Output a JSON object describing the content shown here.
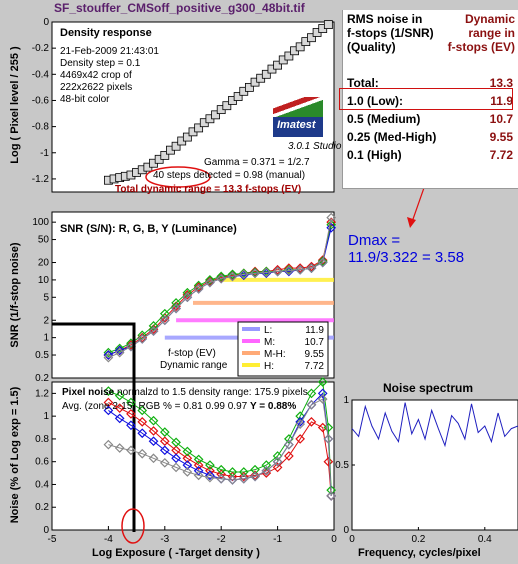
{
  "window_title": "SF_stouffer_CMSoff_positive_g300_48bit.tif",
  "density_panel": {
    "title": "Density response",
    "info_lines": [
      "21-Feb-2009 21:43:01",
      "Density step = 0.1",
      "4469x42 crop of",
      "222x2622 pixels",
      "48-bit color"
    ],
    "logo_text": "Imatest",
    "version_text": "3.0.1  Studio",
    "gamma_text": "Gamma = 0.371 = 1/2.7",
    "steps_text": "40 steps detected = 0.98 (manual)",
    "dynamic_range_text": "Total dynamic range = 13.3 f-stops (EV)",
    "ylabel": "Log ( Pixel level / 255 )",
    "yticks": [
      "0",
      "-0.2",
      "-0.4",
      "-0.6",
      "-0.8",
      "-1",
      "-1.2"
    ]
  },
  "snr_panel": {
    "title": "SNR (S/N): R, G, B, Y (Luminance)",
    "ylabel": "SNR (1/f-stop noise)",
    "yticks": [
      "100",
      "50",
      "20",
      "10",
      "5",
      "2",
      "1",
      "0.5",
      "0.2"
    ],
    "legend": [
      {
        "label": "L:",
        "value": "11.9",
        "color": "#9999ff"
      },
      {
        "label": "M:",
        "value": "10.7",
        "color": "#ff66ff"
      },
      {
        "label": "M-H:",
        "value": "9.55",
        "color": "#ffaa77"
      },
      {
        "label": "H:",
        "value": "7.72",
        "color": "#ffee33"
      }
    ],
    "annotation_line1": "f-stop (EV)",
    "annotation_line2": "Dynamic range"
  },
  "noise_panel": {
    "title": "Pixel noise",
    "subtitle_tail": "normalzd to 1.5 density range: 175.9 pixels",
    "line2": "Avg. (zone 2-15) RGB % = 0.81  0.99  0.97",
    "line2_y": "Y = 0.88%",
    "ylabel": "Noise (% of Log exp = 1.5)",
    "yticks": [
      "1.2",
      "1",
      "0.8",
      "0.6",
      "0.4",
      "0.2",
      "0"
    ],
    "xticks": [
      "-5",
      "-4",
      "-3",
      "-2",
      "-1",
      "0"
    ],
    "xlabel": "Log Exposure ( -Target density )"
  },
  "rms_table": {
    "header_left": [
      "RMS noise in",
      "f-stops (1/SNR)",
      "(Quality)"
    ],
    "header_right": [
      "Dynamic",
      "range in",
      "f-stops (EV)"
    ],
    "rows": [
      {
        "label": "Total:",
        "value": "13.3"
      },
      {
        "label": "1.0   (Low):",
        "value": "11.9"
      },
      {
        "label": "0.5   (Medium)",
        "value": "10.7"
      },
      {
        "label": "0.25 (Med-High)",
        "value": "9.55"
      },
      {
        "label": "0.1   (High)",
        "value": "7.72"
      }
    ]
  },
  "dmax_text": {
    "line1": "Dmax =",
    "line2": "11.9/3.322 = 3.58"
  },
  "spectrum_panel": {
    "title": "Noise spectrum",
    "xlabel": "Frequency, cycles/pixel",
    "xticks": [
      "0",
      "0.2",
      "0.4"
    ],
    "yticks": [
      "1",
      "0.5",
      "0"
    ]
  },
  "chart_data": [
    {
      "type": "line",
      "title": "Density response",
      "xlabel": "",
      "ylabel": "Log ( Pixel level / 255 )",
      "xlim": [
        -5,
        0
      ],
      "ylim": [
        -1.3,
        0
      ],
      "x": [
        -4.0,
        -3.9,
        -3.8,
        -3.7,
        -3.6,
        -3.5,
        -3.4,
        -3.3,
        -3.2,
        -3.1,
        -3.0,
        -2.9,
        -2.8,
        -2.7,
        -2.6,
        -2.5,
        -2.4,
        -2.3,
        -2.2,
        -2.1,
        -2.0,
        -1.9,
        -1.8,
        -1.7,
        -1.6,
        -1.5,
        -1.4,
        -1.3,
        -1.2,
        -1.1,
        -1.0,
        -0.9,
        -0.8,
        -0.7,
        -0.6,
        -0.5,
        -0.4,
        -0.3,
        -0.2,
        -0.1
      ],
      "y": [
        -1.21,
        -1.2,
        -1.19,
        -1.18,
        -1.17,
        -1.15,
        -1.13,
        -1.11,
        -1.08,
        -1.05,
        -1.02,
        -0.98,
        -0.95,
        -0.91,
        -0.88,
        -0.84,
        -0.81,
        -0.77,
        -0.74,
        -0.71,
        -0.67,
        -0.64,
        -0.6,
        -0.57,
        -0.53,
        -0.5,
        -0.46,
        -0.43,
        -0.4,
        -0.36,
        -0.33,
        -0.29,
        -0.26,
        -0.22,
        -0.19,
        -0.15,
        -0.12,
        -0.08,
        -0.05,
        -0.02
      ]
    },
    {
      "type": "line",
      "title": "SNR (S/N): R, G, B, Y (Luminance)",
      "ylabel": "SNR (1/f-stop noise)",
      "yscale": "log",
      "xlim": [
        -5,
        0
      ],
      "ylim": [
        0.2,
        150
      ],
      "x": [
        -4.0,
        -3.8,
        -3.6,
        -3.4,
        -3.2,
        -3.0,
        -2.8,
        -2.6,
        -2.4,
        -2.2,
        -2.0,
        -1.8,
        -1.6,
        -1.4,
        -1.2,
        -1.0,
        -0.8,
        -0.6,
        -0.4,
        -0.2,
        -0.05
      ],
      "series": [
        {
          "name": "R",
          "color": "#e01010",
          "values": [
            0.5,
            0.6,
            0.75,
            1.0,
            1.4,
            2.2,
            3.5,
            5.5,
            7.5,
            9.5,
            11,
            12,
            13,
            14,
            14,
            15,
            16,
            16,
            17,
            22,
            100
          ]
        },
        {
          "name": "G",
          "color": "#10b010",
          "values": [
            0.55,
            0.65,
            0.8,
            1.1,
            1.6,
            2.6,
            4.0,
            6.0,
            8.0,
            10,
            11.5,
            12.5,
            13,
            13.5,
            14,
            14,
            15,
            15,
            16,
            21,
            90
          ]
        },
        {
          "name": "B",
          "color": "#1010e0",
          "values": [
            0.5,
            0.6,
            0.7,
            0.95,
            1.3,
            2.0,
            3.2,
            5.0,
            7.0,
            9.0,
            10.5,
            11.5,
            12,
            13,
            13,
            14,
            14,
            15,
            16,
            20,
            80
          ]
        },
        {
          "name": "Y",
          "color": "#888888",
          "values": [
            0.45,
            0.55,
            0.7,
            0.95,
            1.3,
            2.0,
            3.2,
            5.0,
            7.0,
            9.0,
            10.5,
            11.5,
            12.5,
            13,
            13.5,
            14,
            14.5,
            15,
            16,
            20,
            120
          ]
        }
      ]
    },
    {
      "type": "line",
      "title": "Pixel noise",
      "xlabel": "Log Exposure ( -Target density )",
      "ylabel": "Noise (% of Log exp = 1.5)",
      "xlim": [
        -5,
        0
      ],
      "ylim": [
        0,
        1.3
      ],
      "x": [
        -4.0,
        -3.8,
        -3.6,
        -3.4,
        -3.2,
        -3.0,
        -2.8,
        -2.6,
        -2.4,
        -2.2,
        -2.0,
        -1.8,
        -1.6,
        -1.4,
        -1.2,
        -1.0,
        -0.8,
        -0.6,
        -0.4,
        -0.2,
        -0.1,
        -0.05
      ],
      "series": [
        {
          "name": "R",
          "color": "#e01010",
          "values": [
            1.12,
            1.07,
            1.02,
            0.95,
            0.87,
            0.78,
            0.7,
            0.63,
            0.57,
            0.52,
            0.49,
            0.47,
            0.47,
            0.48,
            0.5,
            0.55,
            0.65,
            0.8,
            0.95,
            0.9,
            0.6,
            0.3
          ]
        },
        {
          "name": "G",
          "color": "#10b010",
          "values": [
            1.22,
            1.18,
            1.12,
            1.05,
            0.96,
            0.86,
            0.77,
            0.69,
            0.62,
            0.57,
            0.53,
            0.51,
            0.51,
            0.53,
            0.57,
            0.65,
            0.8,
            1.0,
            1.2,
            1.3,
            0.9,
            0.35
          ]
        },
        {
          "name": "B",
          "color": "#1010e0",
          "values": [
            1.05,
            0.98,
            0.92,
            0.85,
            0.78,
            0.7,
            0.63,
            0.57,
            0.52,
            0.48,
            0.45,
            0.44,
            0.45,
            0.47,
            0.52,
            0.6,
            0.75,
            0.95,
            1.1,
            1.2,
            0.8,
            0.3
          ]
        },
        {
          "name": "Y",
          "color": "#888888",
          "values": [
            0.75,
            0.72,
            0.7,
            0.67,
            0.63,
            0.59,
            0.55,
            0.51,
            0.48,
            0.46,
            0.45,
            0.44,
            0.45,
            0.47,
            0.52,
            0.6,
            0.75,
            0.93,
            1.1,
            1.15,
            0.8,
            0.3
          ]
        }
      ]
    },
    {
      "type": "line",
      "title": "Noise spectrum",
      "xlabel": "Frequency, cycles/pixel",
      "xlim": [
        0,
        0.5
      ],
      "ylim": [
        0,
        1
      ],
      "series": [
        {
          "name": "",
          "color": "#2020c0",
          "x": [
            0,
            0.02,
            0.04,
            0.06,
            0.08,
            0.1,
            0.12,
            0.14,
            0.16,
            0.18,
            0.2,
            0.22,
            0.24,
            0.26,
            0.28,
            0.3,
            0.32,
            0.34,
            0.36,
            0.38,
            0.4,
            0.42,
            0.44,
            0.46,
            0.48,
            0.5
          ],
          "values": [
            0.78,
            0.72,
            0.95,
            0.8,
            0.7,
            0.9,
            0.76,
            0.68,
            0.98,
            0.74,
            0.85,
            0.7,
            0.92,
            0.78,
            0.65,
            0.88,
            0.82,
            0.7,
            0.97,
            0.75,
            0.8,
            0.68,
            0.9,
            0.72,
            0.78,
            0.8
          ]
        }
      ]
    }
  ]
}
